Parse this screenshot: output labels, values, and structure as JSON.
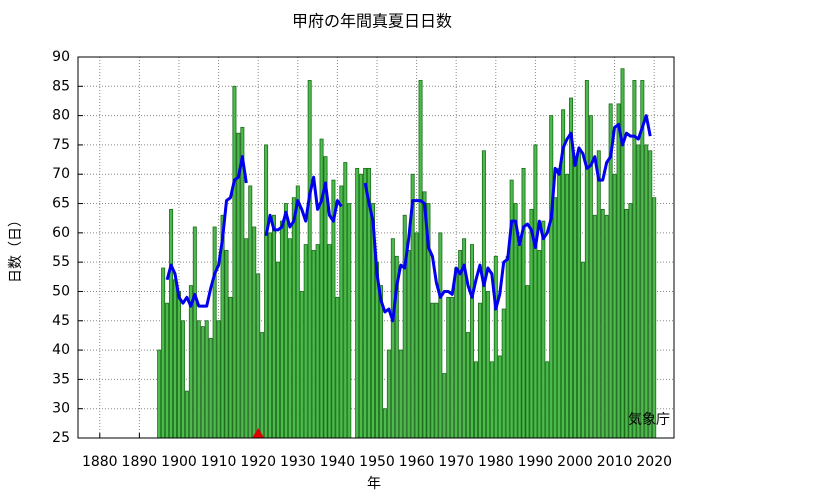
{
  "chart_data": {
    "type": "bar",
    "title": "甲府の年間真夏日日数",
    "xlabel": "年",
    "ylabel": "日数（日）",
    "annotation": "気象庁",
    "x": [
      1895,
      1896,
      1897,
      1898,
      1899,
      1900,
      1901,
      1902,
      1903,
      1904,
      1905,
      1906,
      1907,
      1908,
      1909,
      1910,
      1911,
      1912,
      1913,
      1914,
      1915,
      1916,
      1917,
      1918,
      1919,
      1920,
      1921,
      1922,
      1923,
      1924,
      1925,
      1926,
      1927,
      1928,
      1929,
      1930,
      1931,
      1932,
      1933,
      1934,
      1935,
      1936,
      1937,
      1938,
      1939,
      1940,
      1941,
      1942,
      1943,
      1944,
      1945,
      1946,
      1947,
      1948,
      1949,
      1950,
      1951,
      1952,
      1953,
      1954,
      1955,
      1956,
      1957,
      1958,
      1959,
      1960,
      1961,
      1962,
      1963,
      1964,
      1965,
      1966,
      1967,
      1968,
      1969,
      1970,
      1971,
      1972,
      1973,
      1974,
      1975,
      1976,
      1977,
      1978,
      1979,
      1980,
      1981,
      1982,
      1983,
      1984,
      1985,
      1986,
      1987,
      1988,
      1989,
      1990,
      1991,
      1992,
      1993,
      1994,
      1995,
      1996,
      1997,
      1998,
      1999,
      2000,
      2001,
      2002,
      2003,
      2004,
      2005,
      2006,
      2007,
      2008,
      2009,
      2010,
      2011,
      2012,
      2013,
      2014,
      2015,
      2016,
      2017,
      2018,
      2019,
      2020
    ],
    "series": [
      {
        "type": "bar",
        "color": "#4cbb4c",
        "values": [
          40,
          54,
          48,
          64,
          52,
          50,
          45,
          33,
          51,
          61,
          45,
          44,
          45,
          42,
          61,
          45,
          63,
          57,
          49,
          85,
          77,
          78,
          59,
          68,
          61,
          53,
          43,
          75,
          60,
          63,
          55,
          62,
          65,
          59,
          66,
          68,
          50,
          58,
          86,
          57,
          58,
          76,
          73,
          58,
          69,
          49,
          68,
          72,
          65,
          null,
          71,
          70,
          71,
          71,
          65,
          55,
          51,
          30,
          40,
          59,
          56,
          40,
          63,
          57,
          70,
          60,
          86,
          67,
          65,
          48,
          48,
          60,
          36,
          49,
          49,
          54,
          57,
          59,
          43,
          58,
          38,
          48,
          74,
          50,
          38,
          56,
          39,
          47,
          56,
          69,
          65,
          58,
          71,
          51,
          64,
          75,
          57,
          62,
          38,
          80,
          66,
          71,
          81,
          70,
          83,
          72,
          74,
          55,
          86,
          80,
          63,
          74,
          64,
          63,
          82,
          70,
          82,
          88,
          64,
          65,
          86,
          75,
          86,
          75,
          74,
          66
        ]
      },
      {
        "type": "line",
        "color": "#0000ee",
        "values": [
          null,
          null,
          52,
          54.5,
          53,
          49,
          48,
          49,
          47.5,
          49.5,
          47.5,
          47.5,
          47.5,
          50.5,
          53,
          54.5,
          59,
          65.5,
          66,
          69,
          69.5,
          73,
          68.5,
          null,
          null,
          null,
          null,
          59.5,
          63,
          60.5,
          60.5,
          61,
          63.5,
          61,
          62,
          65.5,
          64,
          62,
          66.5,
          69.5,
          64,
          65.5,
          68.5,
          63,
          62,
          65.5,
          64.5,
          null,
          null,
          null,
          null,
          null,
          68.5,
          65,
          62,
          53,
          48.5,
          46.5,
          47,
          45,
          51,
          54.5,
          54,
          59,
          65.5,
          65.5,
          65.5,
          65,
          57.5,
          56,
          51.5,
          49,
          50,
          50,
          49.5,
          54,
          53,
          54.5,
          51,
          49,
          52,
          54.5,
          51,
          54,
          53,
          47,
          49.5,
          55,
          55.5,
          62,
          62,
          58,
          61,
          61.5,
          60.5,
          57.5,
          62,
          59,
          60,
          62.5,
          71,
          70,
          74.5,
          76,
          77,
          71.5,
          74.5,
          73.5,
          71,
          71.5,
          73,
          69,
          69,
          72,
          73,
          78,
          78.5,
          75,
          77,
          76.5,
          76.5,
          76,
          78,
          80,
          76.5,
          null
        ]
      }
    ],
    "markers": {
      "x": [
        1920
      ],
      "color": "#e00000"
    },
    "xlim": [
      1874.5,
      2025
    ],
    "ylim": [
      25,
      90
    ],
    "xticks": [
      1880,
      1890,
      1900,
      1910,
      1920,
      1930,
      1940,
      1950,
      1960,
      1970,
      1980,
      1990,
      2000,
      2010,
      2020
    ],
    "yticks": [
      25,
      30,
      35,
      40,
      45,
      50,
      55,
      60,
      65,
      70,
      75,
      80,
      85,
      90
    ],
    "grid": true
  }
}
